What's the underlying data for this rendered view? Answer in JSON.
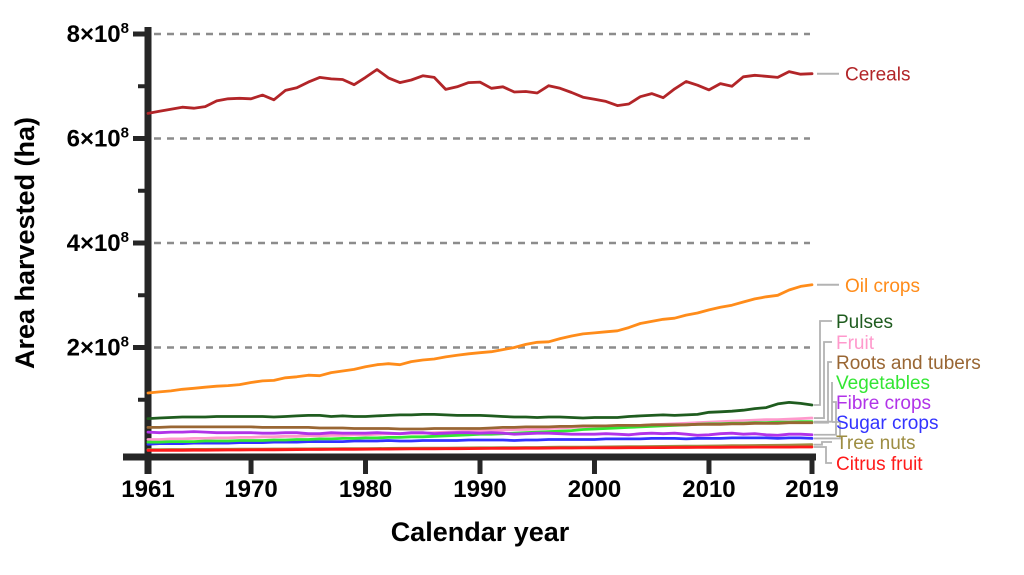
{
  "figure": {
    "background_color": "#ffffff",
    "axis_color": "#262626",
    "grid_color": "#8c8c8c",
    "connector_color": "#b3b3b3"
  },
  "chart_data": {
    "type": "line",
    "title": "",
    "xlabel": "Calendar year",
    "ylabel": "Area harvested (ha)",
    "x_tick_labels": [
      "1961",
      "1970",
      "1980",
      "1990",
      "2000",
      "2010",
      "2019"
    ],
    "x_ticks_years": [
      1961,
      1970,
      1980,
      1990,
      2000,
      2010,
      2019
    ],
    "xlim": [
      1961,
      2019
    ],
    "ylim_ha": [
      0,
      800000000
    ],
    "y_major_ticks": [
      {
        "value_ha": 200000000,
        "label_base": "2×10",
        "label_exp": "8"
      },
      {
        "value_ha": 400000000,
        "label_base": "4×10",
        "label_exp": "8"
      },
      {
        "value_ha": 600000000,
        "label_base": "6×10",
        "label_exp": "8"
      },
      {
        "value_ha": 800000000,
        "label_base": "8×10",
        "label_exp": "8"
      }
    ],
    "y_minor_ticks_ha": [
      100000000,
      300000000,
      500000000,
      700000000
    ],
    "grid": "horizontal dashed gridlines at 2,4,6,8 ×10^8; no top/right frame",
    "legend_position": "right-side direct annotations with gray leader lines",
    "unit": "ha",
    "series_values_unit": "million hectares (multiply by 1e6 for ha)",
    "x": [
      1961,
      1962,
      1963,
      1964,
      1965,
      1966,
      1967,
      1968,
      1969,
      1970,
      1971,
      1972,
      1973,
      1974,
      1975,
      1976,
      1977,
      1978,
      1979,
      1980,
      1981,
      1982,
      1983,
      1984,
      1985,
      1986,
      1987,
      1988,
      1989,
      1990,
      1991,
      1992,
      1993,
      1994,
      1995,
      1996,
      1997,
      1998,
      1999,
      2000,
      2001,
      2002,
      2003,
      2004,
      2005,
      2006,
      2007,
      2008,
      2009,
      2010,
      2011,
      2012,
      2013,
      2014,
      2015,
      2016,
      2017,
      2018,
      2019
    ],
    "series": [
      {
        "name": "Cereals",
        "color": "#b22528",
        "values": [
          648,
          652,
          656,
          660,
          658,
          661,
          672,
          676,
          677,
          676,
          683,
          674,
          692,
          697,
          708,
          717,
          714,
          713,
          703,
          717,
          732,
          716,
          707,
          712,
          720,
          717,
          694,
          699,
          707,
          708,
          696,
          699,
          689,
          690,
          687,
          701,
          696,
          688,
          679,
          675,
          671,
          663,
          666,
          680,
          686,
          678,
          695,
          709,
          702,
          693,
          705,
          700,
          718,
          721,
          719,
          717,
          728,
          723,
          724
        ]
      },
      {
        "name": "Oil crops",
        "color": "#ff8c1a",
        "values": [
          113,
          115,
          117,
          120,
          122,
          124,
          126,
          127,
          129,
          133,
          136,
          137,
          142,
          144,
          147,
          146,
          152,
          155,
          158,
          163,
          167,
          169,
          167,
          173,
          176,
          178,
          182,
          185,
          188,
          190,
          192,
          196,
          200,
          206,
          210,
          211,
          217,
          222,
          226,
          228,
          230,
          232,
          238,
          246,
          250,
          254,
          256,
          262,
          266,
          272,
          277,
          281,
          287,
          293,
          297,
          300,
          310,
          317,
          320
        ]
      },
      {
        "name": "Pulses",
        "color": "#1f5c1f",
        "values": [
          64,
          65,
          66,
          67,
          67,
          67,
          68,
          68,
          68,
          68,
          68,
          67,
          68,
          69,
          70,
          70,
          68,
          69,
          68,
          68,
          69,
          70,
          71,
          71,
          72,
          72,
          71,
          70,
          70,
          70,
          69,
          68,
          67,
          67,
          66,
          67,
          67,
          66,
          65,
          66,
          66,
          66,
          68,
          69,
          70,
          71,
          70,
          71,
          72,
          76,
          77,
          78,
          80,
          83,
          85,
          92,
          95,
          93,
          90
        ]
      },
      {
        "name": "Fruit",
        "color": "#ff99cc",
        "values": [
          24,
          24,
          25,
          25,
          26,
          26,
          27,
          27,
          28,
          28,
          29,
          29,
          30,
          30,
          31,
          31,
          32,
          32,
          33,
          33,
          34,
          35,
          35,
          36,
          36,
          37,
          38,
          39,
          40,
          40,
          41,
          42,
          43,
          43,
          44,
          45,
          46,
          47,
          48,
          48,
          49,
          50,
          51,
          51,
          52,
          53,
          54,
          55,
          56,
          57,
          58,
          59,
          60,
          61,
          62,
          62,
          63,
          64,
          65
        ]
      },
      {
        "name": "Roots and tubers",
        "color": "#996633",
        "values": [
          47,
          47,
          48,
          48,
          48,
          48,
          48,
          48,
          48,
          48,
          47,
          47,
          47,
          47,
          47,
          46,
          46,
          46,
          45,
          45,
          45,
          45,
          44,
          44,
          44,
          45,
          45,
          45,
          45,
          45,
          46,
          47,
          47,
          48,
          48,
          48,
          49,
          49,
          50,
          50,
          50,
          51,
          51,
          51,
          52,
          52,
          52,
          52,
          53,
          53,
          53,
          54,
          54,
          55,
          55,
          55,
          56,
          56,
          56
        ]
      },
      {
        "name": "Vegetables",
        "color": "#33e633",
        "values": [
          19,
          19,
          20,
          20,
          20,
          21,
          21,
          21,
          22,
          22,
          22,
          23,
          23,
          24,
          24,
          25,
          25,
          26,
          26,
          27,
          27,
          28,
          28,
          29,
          29,
          30,
          31,
          32,
          33,
          34,
          34,
          35,
          36,
          37,
          38,
          39,
          40,
          41,
          43,
          44,
          45,
          46,
          47,
          48,
          49,
          50,
          51,
          52,
          53,
          54,
          54,
          55,
          55,
          56,
          56,
          57,
          57,
          58,
          58
        ]
      },
      {
        "name": "Fibre crops",
        "color": "#b133e8",
        "values": [
          38,
          37,
          38,
          38,
          39,
          38,
          37,
          37,
          37,
          37,
          36,
          36,
          37,
          37,
          35,
          35,
          37,
          36,
          36,
          36,
          37,
          36,
          35,
          37,
          37,
          35,
          36,
          37,
          37,
          36,
          37,
          36,
          34,
          35,
          36,
          36,
          35,
          34,
          34,
          34,
          35,
          34,
          33,
          35,
          36,
          35,
          36,
          34,
          32,
          33,
          35,
          36,
          34,
          35,
          33,
          32,
          34,
          34,
          33
        ]
      },
      {
        "name": "Sugar crops",
        "color": "#3333ff",
        "values": [
          15,
          16,
          16,
          16,
          17,
          17,
          17,
          17,
          18,
          18,
          18,
          19,
          19,
          19,
          20,
          20,
          20,
          20,
          21,
          21,
          21,
          22,
          21,
          21,
          22,
          22,
          22,
          22,
          23,
          23,
          23,
          23,
          22,
          23,
          23,
          24,
          24,
          24,
          24,
          24,
          25,
          25,
          25,
          25,
          26,
          26,
          26,
          25,
          26,
          26,
          26,
          27,
          27,
          27,
          27,
          26,
          27,
          27,
          26
        ]
      },
      {
        "name": "Tree nuts",
        "color": "#9d8d42",
        "values": [
          4.5,
          4.6,
          4.7,
          4.8,
          4.9,
          5,
          5.1,
          5.2,
          5.3,
          5.5,
          5.6,
          5.7,
          5.8,
          5.9,
          6,
          6.1,
          6.2,
          6.4,
          6.5,
          6.6,
          6.7,
          6.8,
          7,
          7.1,
          7.2,
          7.4,
          7.5,
          7.7,
          7.8,
          8,
          8.1,
          8.3,
          8.4,
          8.6,
          8.7,
          8.9,
          9.1,
          9.2,
          9.4,
          9.6,
          9.7,
          9.9,
          10.1,
          10.3,
          10.5,
          10.7,
          10.9,
          11.1,
          11.3,
          11.5,
          11.7,
          12,
          12.2,
          12.4,
          12.6,
          12.9,
          13.2,
          13.6,
          14
        ]
      },
      {
        "name": "Citrus fruit",
        "color": "#ff1a1a",
        "values": [
          3,
          3.1,
          3.2,
          3.3,
          3.4,
          3.5,
          3.7,
          3.8,
          3.9,
          4,
          4.2,
          4.3,
          4.4,
          4.6,
          4.7,
          4.8,
          5,
          5.1,
          5.2,
          5.4,
          5.5,
          5.6,
          5.8,
          5.9,
          6,
          6.2,
          6.3,
          6.4,
          6.6,
          6.7,
          6.8,
          7,
          7.1,
          7.2,
          7.3,
          7.5,
          7.6,
          7.7,
          7.8,
          7.9,
          8,
          8.1,
          8.2,
          8.3,
          8.4,
          8.5,
          8.6,
          8.7,
          8.8,
          8.9,
          9,
          9.1,
          9.2,
          9.3,
          9.3,
          9.4,
          9.4,
          9.5,
          9.5
        ]
      }
    ],
    "direct_labels": [
      "Cereals",
      "Oil crops"
    ],
    "cluster_labels": [
      "Pulses",
      "Fruit",
      "Roots and tubers",
      "Vegetables",
      "Fibre crops",
      "Sugar crops",
      "Tree nuts",
      "Citrus fruit"
    ]
  }
}
